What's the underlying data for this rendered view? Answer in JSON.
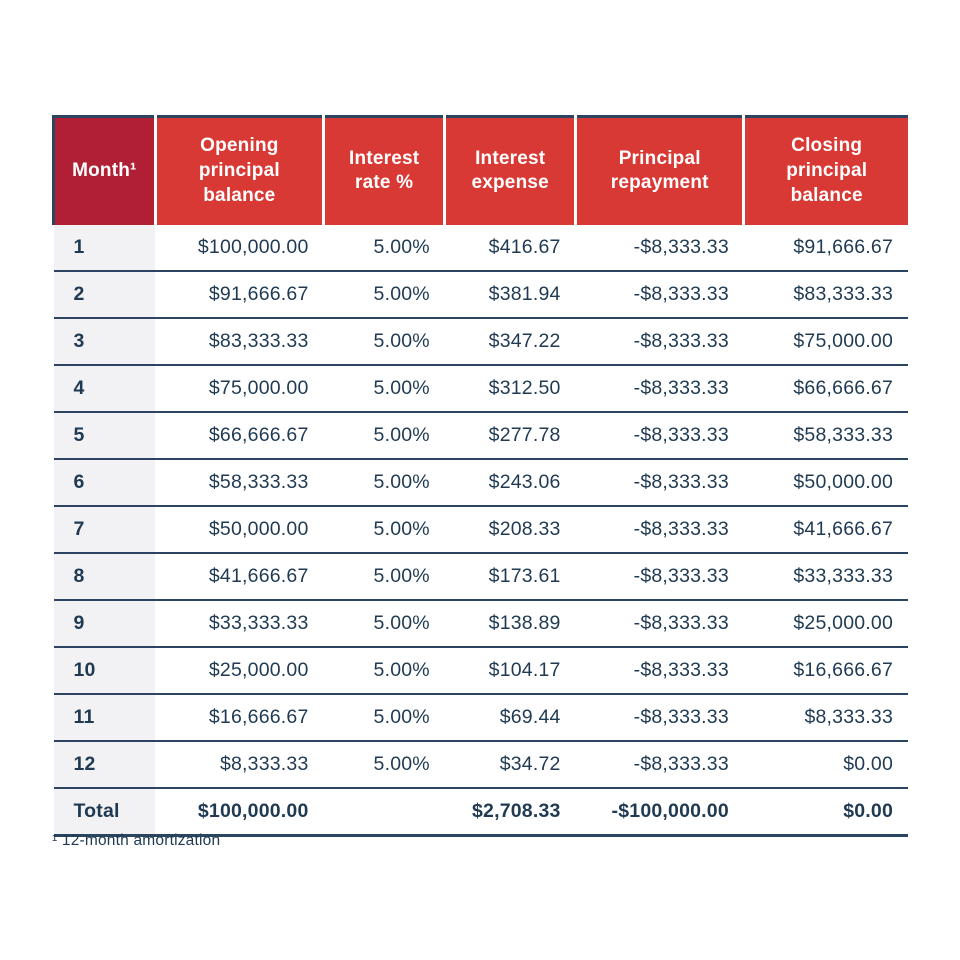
{
  "chart_data": {
    "type": "table",
    "columns": [
      {
        "label": "Month¹",
        "align": "left"
      },
      {
        "label": "Opening principal balance",
        "align": "right"
      },
      {
        "label": "Interest rate %",
        "align": "right"
      },
      {
        "label": "Interest expense",
        "align": "right"
      },
      {
        "label": "Principal repayment",
        "align": "right"
      },
      {
        "label": "Closing principal balance",
        "align": "right"
      }
    ],
    "rows": [
      [
        "1",
        "$100,000.00",
        "5.00%",
        "$416.67",
        "-$8,333.33",
        "$91,666.67"
      ],
      [
        "2",
        "$91,666.67",
        "5.00%",
        "$381.94",
        "-$8,333.33",
        "$83,333.33"
      ],
      [
        "3",
        "$83,333.33",
        "5.00%",
        "$347.22",
        "-$8,333.33",
        "$75,000.00"
      ],
      [
        "4",
        "$75,000.00",
        "5.00%",
        "$312.50",
        "-$8,333.33",
        "$66,666.67"
      ],
      [
        "5",
        "$66,666.67",
        "5.00%",
        "$277.78",
        "-$8,333.33",
        "$58,333.33"
      ],
      [
        "6",
        "$58,333.33",
        "5.00%",
        "$243.06",
        "-$8,333.33",
        "$50,000.00"
      ],
      [
        "7",
        "$50,000.00",
        "5.00%",
        "$208.33",
        "-$8,333.33",
        "$41,666.67"
      ],
      [
        "8",
        "$41,666.67",
        "5.00%",
        "$173.61",
        "-$8,333.33",
        "$33,333.33"
      ],
      [
        "9",
        "$33,333.33",
        "5.00%",
        "$138.89",
        "-$8,333.33",
        "$25,000.00"
      ],
      [
        "10",
        "$25,000.00",
        "5.00%",
        "$104.17",
        "-$8,333.33",
        "$16,666.67"
      ],
      [
        "11",
        "$16,666.67",
        "5.00%",
        "$69.44",
        "-$8,333.33",
        "$8,333.33"
      ],
      [
        "12",
        "$8,333.33",
        "5.00%",
        "$34.72",
        "-$8,333.33",
        "$0.00"
      ]
    ],
    "total_row": [
      "Total",
      "$100,000.00",
      "",
      "$2,708.33",
      "-$100,000.00",
      "$0.00"
    ],
    "footnote": "¹ 12-month amortization",
    "title": "",
    "legend": "none",
    "grid": "horizontal-row-dividers"
  },
  "colors": {
    "page_bg": "#ffffff",
    "header_bg": "#d93934",
    "header_first_bg": "#b01f33",
    "text": "#1f3a52",
    "row_divider": "#2b4560",
    "month_column_bg": "#f2f2f4",
    "header_text": "#ffffff"
  }
}
